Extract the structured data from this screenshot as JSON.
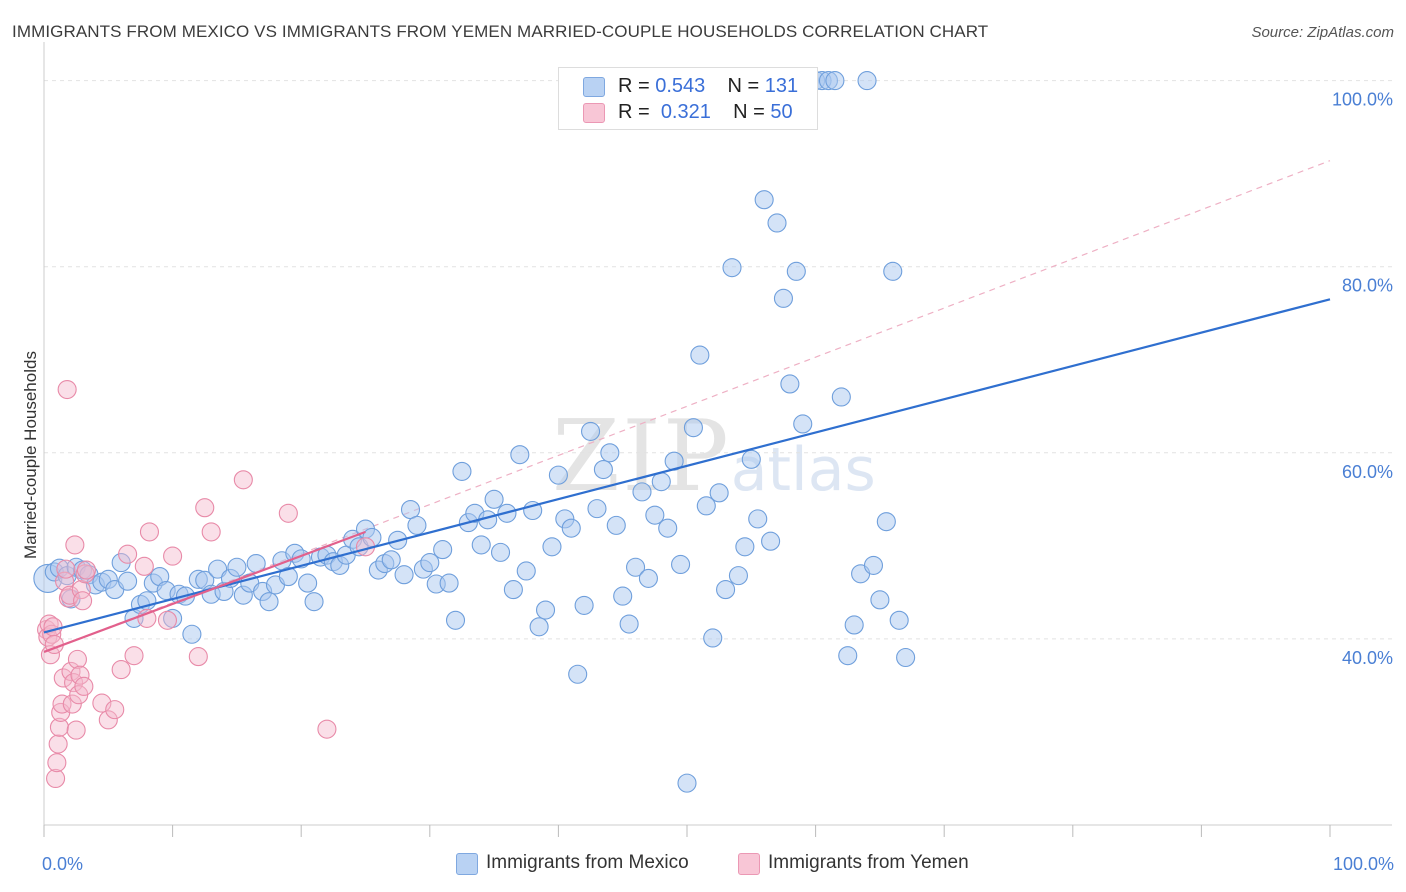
{
  "title": "IMMIGRANTS FROM MEXICO VS IMMIGRANTS FROM YEMEN MARRIED-COUPLE HOUSEHOLDS CORRELATION CHART",
  "source": "Source: ZipAtlas.com",
  "watermark": {
    "main": "ZIP",
    "sub": "atlas"
  },
  "legend": {
    "mexico": {
      "r_label": "R =",
      "r_value": "0.543",
      "n_label": "N =",
      "n_value": "131"
    },
    "yemen": {
      "r_label": "R =",
      "r_value": "0.321",
      "n_label": "N =",
      "n_value": "50"
    }
  },
  "colors": {
    "mexico_fill": "#a9c8f0",
    "mexico_stroke": "#6f9fdc",
    "mexico_line": "#2f6fcf",
    "yemen_fill": "#f5b8cb",
    "yemen_stroke": "#e88aa8",
    "yemen_line": "#e2608c",
    "axis_text": "#4a7fd4"
  },
  "chart_data": {
    "type": "scatter",
    "title": "IMMIGRANTS FROM MEXICO VS IMMIGRANTS FROM YEMEN MARRIED-COUPLE HOUSEHOLDS CORRELATION CHART",
    "xlabel": "",
    "ylabel": "Married-couple Households",
    "xlim": [
      0,
      100
    ],
    "ylim": [
      20,
      102
    ],
    "x_tick_labels": [
      "0.0%",
      "100.0%"
    ],
    "y_tick_labels": [
      "40.0%",
      "60.0%",
      "80.0%",
      "100.0%"
    ],
    "y_ticks": [
      40,
      60,
      80,
      100
    ],
    "grid": true,
    "legend_position": "top-center",
    "series": [
      {
        "name": "Immigrants from Mexico",
        "color": "#a9c8f0",
        "trend": {
          "x": [
            0,
            100
          ],
          "y": [
            40.7,
            76.5
          ]
        },
        "points": [
          [
            0.3,
            46.5
          ],
          [
            0.8,
            47.2
          ],
          [
            1.2,
            47.6
          ],
          [
            1.8,
            46.8
          ],
          [
            2.1,
            44.3
          ],
          [
            2.5,
            47.7
          ],
          [
            3.0,
            47.4
          ],
          [
            3.5,
            46.9
          ],
          [
            4.0,
            45.8
          ],
          [
            4.5,
            46.1
          ],
          [
            5.0,
            46.4
          ],
          [
            5.5,
            45.3
          ],
          [
            6.0,
            48.2
          ],
          [
            6.5,
            46.2
          ],
          [
            7.0,
            42.2
          ],
          [
            7.5,
            43.7
          ],
          [
            8.0,
            44.1
          ],
          [
            8.5,
            46.0
          ],
          [
            9.0,
            46.7
          ],
          [
            9.5,
            45.2
          ],
          [
            10.0,
            42.2
          ],
          [
            10.5,
            44.8
          ],
          [
            11.0,
            44.6
          ],
          [
            11.5,
            40.5
          ],
          [
            12.0,
            46.4
          ],
          [
            12.5,
            46.3
          ],
          [
            13.0,
            44.8
          ],
          [
            13.5,
            47.5
          ],
          [
            14.0,
            45.1
          ],
          [
            14.5,
            46.5
          ],
          [
            15.0,
            47.7
          ],
          [
            15.5,
            44.7
          ],
          [
            16.0,
            46.0
          ],
          [
            16.5,
            48.1
          ],
          [
            17.0,
            45.1
          ],
          [
            17.5,
            44.0
          ],
          [
            18.0,
            45.8
          ],
          [
            18.5,
            48.4
          ],
          [
            19.0,
            46.7
          ],
          [
            19.5,
            49.2
          ],
          [
            20.0,
            48.6
          ],
          [
            20.5,
            46.0
          ],
          [
            21.0,
            44.0
          ],
          [
            21.5,
            48.8
          ],
          [
            22.0,
            49.0
          ],
          [
            22.5,
            48.3
          ],
          [
            23.0,
            47.9
          ],
          [
            23.5,
            49.0
          ],
          [
            24.0,
            50.7
          ],
          [
            24.5,
            49.9
          ],
          [
            25.0,
            51.8
          ],
          [
            25.5,
            50.9
          ],
          [
            26.0,
            47.4
          ],
          [
            26.5,
            48.1
          ],
          [
            27.0,
            48.5
          ],
          [
            27.5,
            50.6
          ],
          [
            28.0,
            46.9
          ],
          [
            28.5,
            53.9
          ],
          [
            29.0,
            52.2
          ],
          [
            29.5,
            47.5
          ],
          [
            30.0,
            48.2
          ],
          [
            30.5,
            45.9
          ],
          [
            31.0,
            49.6
          ],
          [
            31.5,
            46.0
          ],
          [
            32.0,
            42.0
          ],
          [
            32.5,
            58.0
          ],
          [
            33.0,
            52.5
          ],
          [
            33.5,
            53.5
          ],
          [
            34.0,
            50.1
          ],
          [
            34.5,
            52.8
          ],
          [
            35.0,
            55.0
          ],
          [
            35.5,
            49.3
          ],
          [
            36.0,
            53.5
          ],
          [
            36.5,
            45.3
          ],
          [
            37.0,
            59.8
          ],
          [
            37.5,
            47.3
          ],
          [
            38.0,
            53.8
          ],
          [
            38.5,
            41.3
          ],
          [
            39.0,
            43.1
          ],
          [
            39.5,
            49.9
          ],
          [
            40.0,
            57.6
          ],
          [
            40.5,
            52.9
          ],
          [
            41.0,
            51.9
          ],
          [
            41.5,
            36.2
          ],
          [
            42.0,
            43.6
          ],
          [
            42.5,
            62.3
          ],
          [
            43.0,
            54.0
          ],
          [
            43.5,
            58.2
          ],
          [
            44.0,
            60.0
          ],
          [
            44.5,
            52.2
          ],
          [
            45.0,
            44.6
          ],
          [
            45.5,
            41.6
          ],
          [
            46.0,
            47.7
          ],
          [
            46.5,
            55.8
          ],
          [
            47.0,
            46.5
          ],
          [
            47.5,
            53.3
          ],
          [
            48.0,
            56.9
          ],
          [
            48.5,
            51.9
          ],
          [
            49.0,
            59.1
          ],
          [
            49.5,
            48.0
          ],
          [
            50.0,
            24.5
          ],
          [
            50.5,
            62.7
          ],
          [
            51.0,
            70.5
          ],
          [
            51.5,
            54.3
          ],
          [
            52.0,
            40.1
          ],
          [
            52.5,
            55.7
          ],
          [
            53.0,
            45.3
          ],
          [
            53.5,
            79.9
          ],
          [
            54.0,
            46.8
          ],
          [
            54.5,
            49.9
          ],
          [
            55.0,
            59.3
          ],
          [
            55.5,
            52.9
          ],
          [
            56.0,
            87.2
          ],
          [
            56.5,
            50.5
          ],
          [
            57.0,
            84.7
          ],
          [
            57.5,
            76.6
          ],
          [
            58.0,
            67.4
          ],
          [
            58.5,
            79.5
          ],
          [
            59.0,
            63.1
          ],
          [
            59.5,
            100.0
          ],
          [
            60.0,
            100.0
          ],
          [
            60.5,
            100.0
          ],
          [
            61.0,
            100.0
          ],
          [
            61.5,
            100.0
          ],
          [
            62.0,
            66.0
          ],
          [
            62.5,
            38.2
          ],
          [
            63.0,
            41.5
          ],
          [
            63.5,
            47.0
          ],
          [
            64.0,
            100.0
          ],
          [
            64.5,
            47.9
          ],
          [
            65.0,
            44.2
          ],
          [
            65.5,
            52.6
          ],
          [
            66.0,
            79.5
          ],
          [
            66.5,
            42.0
          ],
          [
            67.0,
            38.0
          ]
        ]
      },
      {
        "name": "Immigrants from Yemen",
        "color": "#f5b8cb",
        "trend": {
          "x": [
            0,
            25
          ],
          "y": [
            38.6,
            51.5
          ]
        },
        "trend_extension": {
          "x": [
            0,
            100
          ],
          "y": [
            38.6,
            91.4
          ]
        },
        "points": [
          [
            0.2,
            41.0
          ],
          [
            0.3,
            40.2
          ],
          [
            0.4,
            41.6
          ],
          [
            0.5,
            38.3
          ],
          [
            0.6,
            40.5
          ],
          [
            0.7,
            41.3
          ],
          [
            0.8,
            39.4
          ],
          [
            0.9,
            25.0
          ],
          [
            1.0,
            26.7
          ],
          [
            1.1,
            28.7
          ],
          [
            1.2,
            30.5
          ],
          [
            1.3,
            32.1
          ],
          [
            1.4,
            33.0
          ],
          [
            1.5,
            35.8
          ],
          [
            1.6,
            46.2
          ],
          [
            1.7,
            47.5
          ],
          [
            1.8,
            66.8
          ],
          [
            1.9,
            44.4
          ],
          [
            2.0,
            44.7
          ],
          [
            2.1,
            36.5
          ],
          [
            2.2,
            33.0
          ],
          [
            2.3,
            35.3
          ],
          [
            2.4,
            50.1
          ],
          [
            2.5,
            30.2
          ],
          [
            2.6,
            37.8
          ],
          [
            2.7,
            34.0
          ],
          [
            2.8,
            36.1
          ],
          [
            2.9,
            45.3
          ],
          [
            3.0,
            44.1
          ],
          [
            3.1,
            34.9
          ],
          [
            3.2,
            47.0
          ],
          [
            3.3,
            47.4
          ],
          [
            4.5,
            33.1
          ],
          [
            5.0,
            31.3
          ],
          [
            5.5,
            32.4
          ],
          [
            6.0,
            36.7
          ],
          [
            6.5,
            49.1
          ],
          [
            7.0,
            38.2
          ],
          [
            7.8,
            47.8
          ],
          [
            8.0,
            42.2
          ],
          [
            8.2,
            51.5
          ],
          [
            9.6,
            42.0
          ],
          [
            10.0,
            48.9
          ],
          [
            12.0,
            38.1
          ],
          [
            12.5,
            54.1
          ],
          [
            13.0,
            51.5
          ],
          [
            15.5,
            57.1
          ],
          [
            19.0,
            53.5
          ],
          [
            22.0,
            30.3
          ],
          [
            25.0,
            49.9
          ]
        ]
      }
    ]
  },
  "axis": {
    "x_left_label": "0.0%",
    "x_right_label": "100.0%",
    "y_title": "Married-couple Households"
  },
  "bottom_legend": {
    "mexico": "Immigrants from Mexico",
    "yemen": "Immigrants from Yemen"
  }
}
